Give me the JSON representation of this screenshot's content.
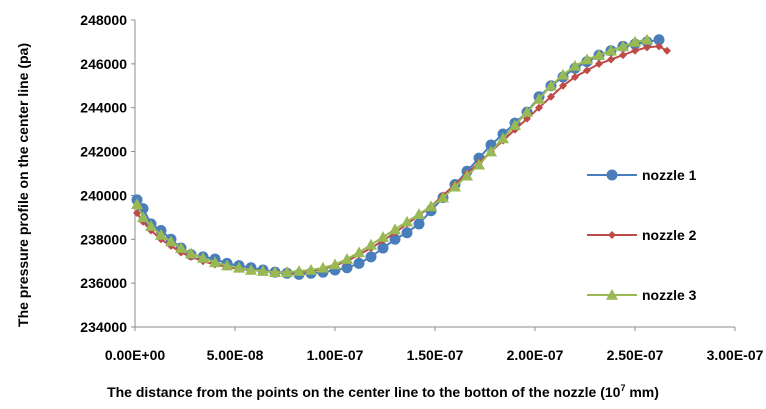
{
  "chart_data": {
    "type": "line",
    "title": "",
    "xlabel": "The distance from the points on the center line to the botton of the nozzle (10",
    "xlabel_superscript": "7",
    "xlabel_tail": " mm)",
    "ylabel": "The pressure profile on the center line (pa)",
    "xlim": [
      0,
      3e-07
    ],
    "ylim": [
      234000,
      248000
    ],
    "x_ticks": [
      0,
      5e-08,
      1e-07,
      1.5e-07,
      2e-07,
      2.5e-07,
      3e-07
    ],
    "x_tick_labels": [
      "0.00E+00",
      "5.00E-08",
      "1.00E-07",
      "1.50E-07",
      "2.00E-07",
      "2.50E-07",
      "3.00E-07"
    ],
    "y_ticks": [
      234000,
      236000,
      238000,
      240000,
      242000,
      244000,
      246000,
      248000
    ],
    "y_tick_labels": [
      "234000",
      "236000",
      "238000",
      "240000",
      "242000",
      "244000",
      "246000",
      "248000"
    ],
    "grid": false,
    "legend_position": "right",
    "series": [
      {
        "name": "nozzle 1",
        "color": "#4a7ebb",
        "marker": "circle",
        "x": [
          1e-09,
          4e-09,
          8e-09,
          1.3e-08,
          1.8e-08,
          2.3e-08,
          2.8e-08,
          3.4e-08,
          4e-08,
          4.6e-08,
          5.2e-08,
          5.8e-08,
          6.4e-08,
          7e-08,
          7.6e-08,
          8.2e-08,
          8.8e-08,
          9.4e-08,
          1e-07,
          1.06e-07,
          1.12e-07,
          1.18e-07,
          1.24e-07,
          1.3e-07,
          1.36e-07,
          1.42e-07,
          1.48e-07,
          1.54e-07,
          1.6e-07,
          1.66e-07,
          1.72e-07,
          1.78e-07,
          1.84e-07,
          1.9e-07,
          1.96e-07,
          2.02e-07,
          2.08e-07,
          2.14e-07,
          2.2e-07,
          2.26e-07,
          2.32e-07,
          2.38e-07,
          2.44e-07,
          2.5e-07,
          2.56e-07,
          2.62e-07
        ],
        "y": [
          239800,
          239400,
          238700,
          238400,
          238000,
          237600,
          237300,
          237200,
          237100,
          236900,
          236800,
          236700,
          236600,
          236500,
          236450,
          236400,
          236450,
          236500,
          236600,
          236700,
          236900,
          237200,
          237600,
          238000,
          238300,
          238700,
          239300,
          239900,
          240500,
          241100,
          241700,
          242300,
          242800,
          243300,
          243800,
          244500,
          245000,
          245400,
          245800,
          246100,
          246400,
          246600,
          246800,
          246900,
          247000,
          247100
        ]
      },
      {
        "name": "nozzle 2",
        "color": "#be4b48",
        "marker": "diamond",
        "x": [
          1e-09,
          4e-09,
          8e-09,
          1.3e-08,
          1.8e-08,
          2.3e-08,
          2.8e-08,
          3.4e-08,
          4e-08,
          4.6e-08,
          5.2e-08,
          5.8e-08,
          6.4e-08,
          7e-08,
          7.6e-08,
          8.2e-08,
          8.8e-08,
          9.4e-08,
          1e-07,
          1.06e-07,
          1.12e-07,
          1.18e-07,
          1.24e-07,
          1.3e-07,
          1.36e-07,
          1.42e-07,
          1.48e-07,
          1.54e-07,
          1.6e-07,
          1.66e-07,
          1.72e-07,
          1.78e-07,
          1.84e-07,
          1.9e-07,
          1.96e-07,
          2.02e-07,
          2.08e-07,
          2.14e-07,
          2.2e-07,
          2.26e-07,
          2.32e-07,
          2.38e-07,
          2.44e-07,
          2.5e-07,
          2.56e-07,
          2.62e-07,
          2.66e-07
        ],
        "y": [
          239200,
          238800,
          238400,
          238000,
          237700,
          237400,
          237200,
          237000,
          236850,
          236750,
          236650,
          236600,
          236550,
          236500,
          236500,
          236500,
          236550,
          236650,
          236800,
          237000,
          237300,
          237600,
          237950,
          238300,
          238700,
          239100,
          239500,
          240000,
          240500,
          241000,
          241500,
          242000,
          242500,
          243000,
          243500,
          244000,
          244500,
          245000,
          245400,
          245700,
          246000,
          246200,
          246400,
          246600,
          246750,
          246800,
          246600
        ]
      },
      {
        "name": "nozzle 3",
        "color": "#98b954",
        "marker": "triangle",
        "x": [
          1e-09,
          4e-09,
          8e-09,
          1.3e-08,
          1.8e-08,
          2.3e-08,
          2.8e-08,
          3.4e-08,
          4e-08,
          4.6e-08,
          5.2e-08,
          5.8e-08,
          6.4e-08,
          7e-08,
          7.6e-08,
          8.2e-08,
          8.8e-08,
          9.4e-08,
          1e-07,
          1.06e-07,
          1.12e-07,
          1.18e-07,
          1.24e-07,
          1.3e-07,
          1.36e-07,
          1.42e-07,
          1.48e-07,
          1.54e-07,
          1.6e-07,
          1.66e-07,
          1.72e-07,
          1.78e-07,
          1.84e-07,
          1.9e-07,
          1.96e-07,
          2.02e-07,
          2.08e-07,
          2.14e-07,
          2.2e-07,
          2.26e-07,
          2.32e-07,
          2.38e-07,
          2.44e-07,
          2.5e-07,
          2.56e-07
        ],
        "y": [
          239600,
          239000,
          238600,
          238200,
          237900,
          237600,
          237350,
          237150,
          236950,
          236800,
          236700,
          236600,
          236550,
          236500,
          236500,
          236550,
          236600,
          236700,
          236850,
          237100,
          237400,
          237750,
          238100,
          238450,
          238800,
          239150,
          239500,
          239900,
          240400,
          240900,
          241400,
          242000,
          242600,
          243200,
          243800,
          244400,
          245000,
          245500,
          245900,
          246200,
          246400,
          246600,
          246800,
          247000,
          247100
        ]
      }
    ]
  }
}
